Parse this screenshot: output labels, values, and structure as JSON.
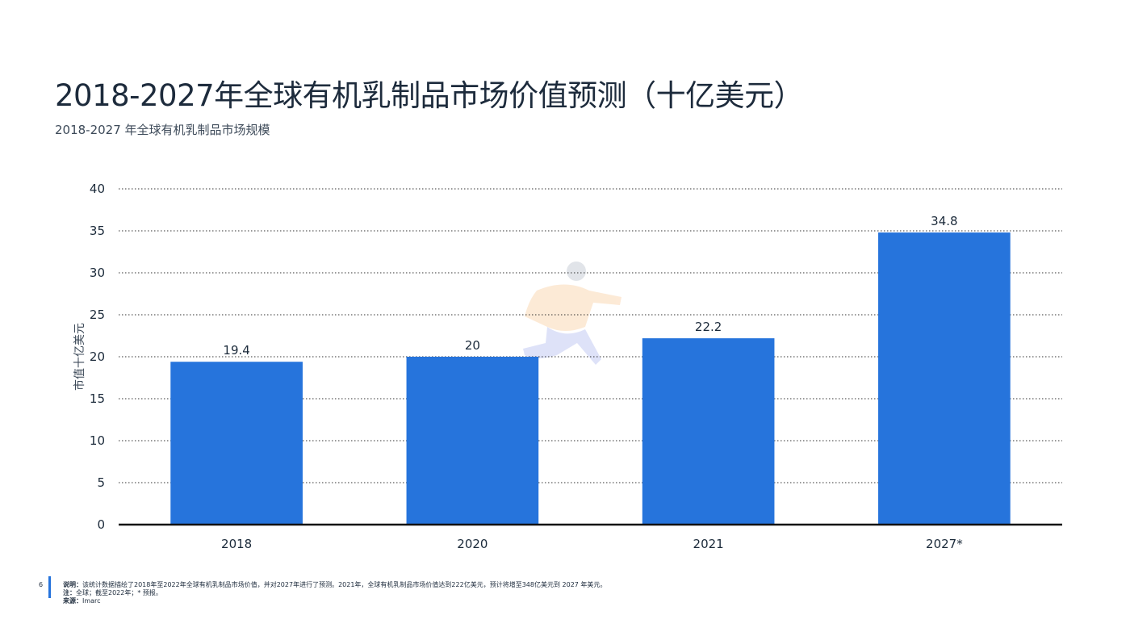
{
  "page": {
    "title": "2018-2027年全球有机乳制品市场价值预测（十亿美元）",
    "subtitle": "2018-2027 年全球有机乳制品市场规模",
    "page_number": "6"
  },
  "footer": {
    "note_label": "说明：",
    "note_text": "该统计数据描绘了2018年至2022年全球有机乳制品市场价值，并对2027年进行了预测。2021年，全球有机乳制品市场价值达到222亿美元，预计将增至348亿美元到 2027 年美元。",
    "remark_label": "注：",
    "remark_text": "全球；截至2022年；* 预报。",
    "source_label": "来源：",
    "source_text": "Imarc"
  },
  "colors": {
    "bar": "#2674dc",
    "accent": "#2674dc"
  },
  "chart_data": {
    "type": "bar",
    "title": "",
    "xlabel": "",
    "ylabel": "市值十亿美元",
    "categories": [
      "2018",
      "2020",
      "2021",
      "2027*"
    ],
    "values": [
      19.4,
      20,
      22.2,
      34.8
    ],
    "data_labels": [
      "19.4",
      "20",
      "22.2",
      "34.8"
    ],
    "ylim": [
      0,
      40
    ],
    "yticks": [
      0,
      5,
      10,
      15,
      20,
      25,
      30,
      35,
      40
    ],
    "grid": true,
    "legend": "none"
  }
}
